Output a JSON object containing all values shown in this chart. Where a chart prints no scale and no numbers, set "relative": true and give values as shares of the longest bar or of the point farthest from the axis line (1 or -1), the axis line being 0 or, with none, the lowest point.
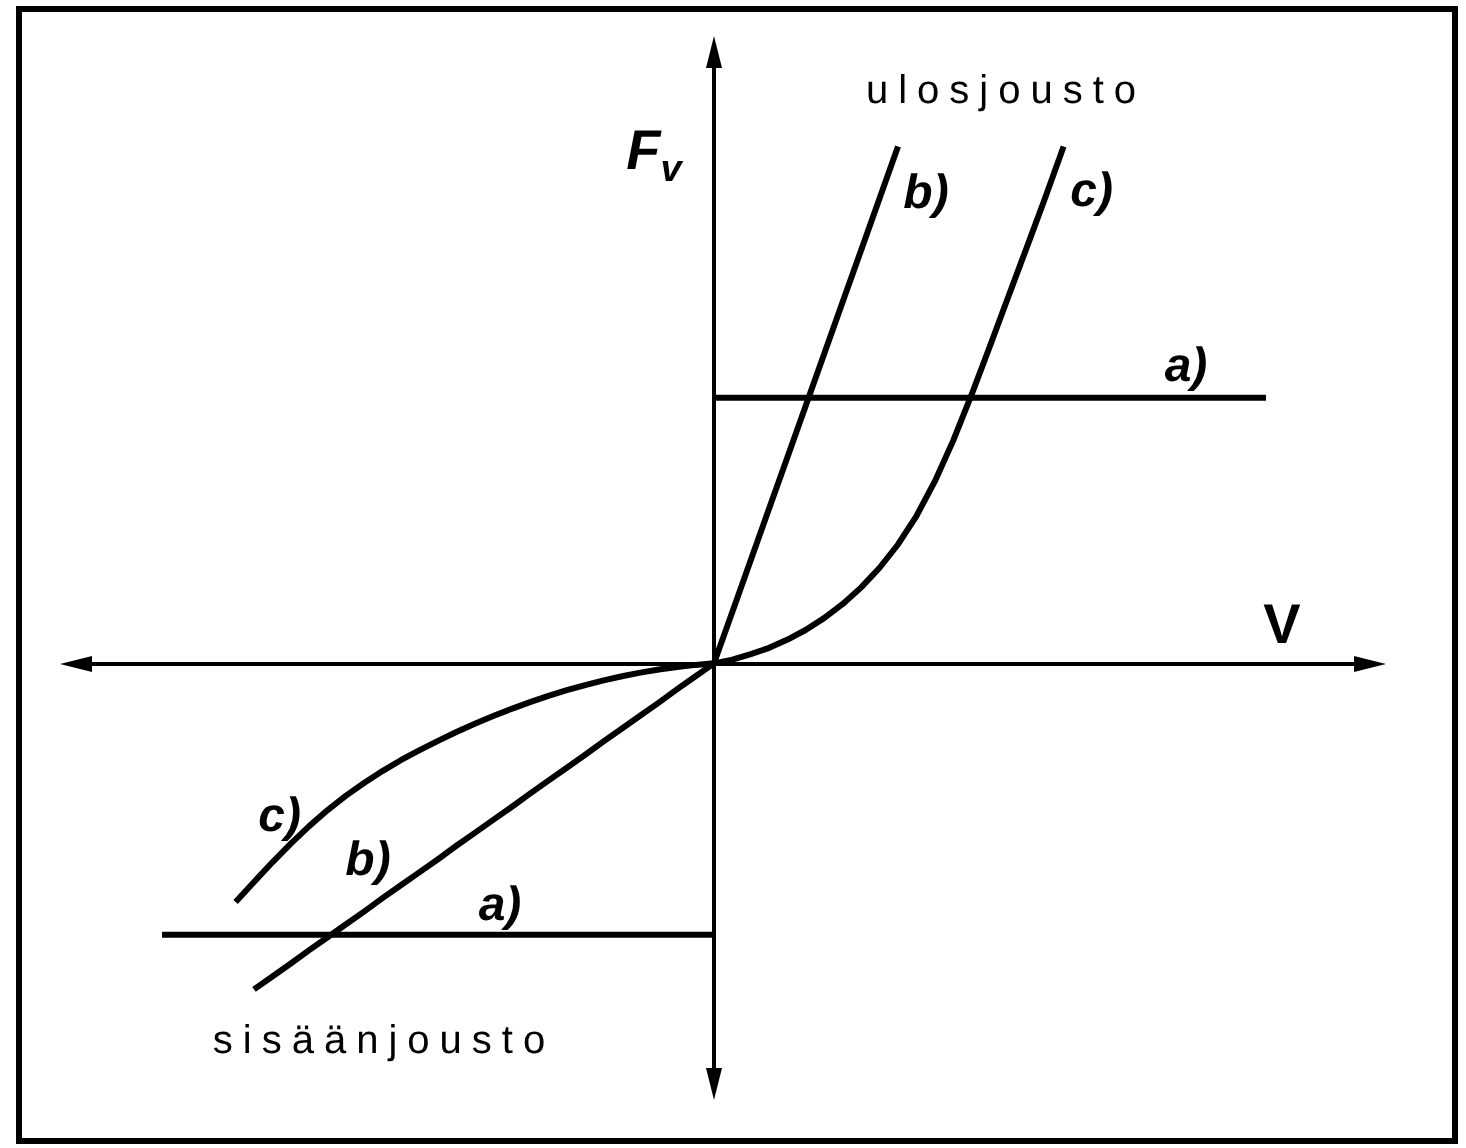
{
  "chart_data": {
    "type": "line",
    "relative": true,
    "xlabel": "V",
    "ylabel": "F$_{v}$",
    "marker": "none",
    "line_style": "solid",
    "categories": [
      null,
      null,
      null,
      null,
      null,
      null,
      null,
      null,
      null,
      null,
      null,
      null,
      null,
      null,
      null,
      null,
      null,
      null,
      null,
      null,
      null,
      null,
      null,
      null,
      null,
      null,
      null,
      null,
      null,
      null,
      null,
      null,
      null,
      null,
      null,
      null,
      null,
      null,
      null,
      null,
      null,
      null,
      null,
      null,
      null,
      null,
      null,
      null,
      null,
      null,
      null,
      null,
      null,
      null,
      null,
      null,
      null,
      null,
      null,
      null,
      null
    ],
    "series": [
      {
        "name": "a)",
        "color": "#000000",
        "values": [
          -0.525,
          -0.525,
          -0.525,
          -0.525,
          -0.525,
          -0.525,
          -0.525,
          -0.525,
          -0.525,
          -0.525,
          -0.525,
          -0.525,
          -0.525,
          -0.525,
          -0.525,
          -0.525,
          -0.525,
          -0.525,
          -0.525,
          -0.525,
          -0.525,
          -0.525,
          -0.525,
          -0.525,
          -0.525,
          -0.525,
          -0.525,
          -0.525,
          -0.525,
          -0.525,
          -0.525,
          null,
          null,
          null,
          null,
          null,
          null,
          null,
          null,
          null,
          null,
          null,
          null,
          null,
          null,
          null,
          null,
          null,
          null,
          null,
          null,
          null,
          null,
          null,
          null,
          null,
          null,
          null,
          null,
          null,
          null
        ]
      },
      {
        "name": "a)",
        "color": "#000000",
        "values": [
          null,
          null,
          null,
          null,
          null,
          null,
          null,
          null,
          null,
          null,
          null,
          null,
          null,
          null,
          null,
          null,
          null,
          null,
          null,
          null,
          null,
          null,
          null,
          null,
          null,
          null,
          null,
          null,
          null,
          null,
          0.514,
          0.514,
          0.514,
          0.514,
          0.514,
          0.514,
          0.514,
          0.514,
          0.514,
          0.514,
          0.514,
          0.514,
          0.514,
          0.514,
          0.514,
          0.514,
          0.514,
          0.514,
          0.514,
          0.514,
          0.514,
          0.514,
          0.514,
          0.514,
          0.514,
          0.514,
          0.514,
          0.514,
          0.514,
          0.514,
          0.514
        ]
      },
      {
        "name": "b)",
        "color": "#000000",
        "values": [
          null,
          null,
          null,
          null,
          null,
          -0.631,
          -0.606,
          -0.581,
          -0.555,
          -0.53,
          -0.505,
          -0.48,
          -0.454,
          -0.429,
          -0.404,
          -0.379,
          -0.353,
          -0.328,
          -0.303,
          -0.278,
          -0.252,
          -0.227,
          -0.202,
          -0.177,
          -0.151,
          -0.126,
          -0.101,
          -0.076,
          -0.05,
          -0.025,
          0,
          0.1,
          0.2,
          0.3,
          0.4,
          0.5,
          0.6,
          0.7,
          0.8,
          0.9,
          1,
          null,
          null,
          null,
          null,
          null,
          null,
          null,
          null,
          null,
          null,
          null,
          null,
          null,
          null,
          null,
          null,
          null,
          null,
          null,
          null
        ]
      },
      {
        "name": "c)",
        "color": "#000000",
        "values": [
          null,
          null,
          null,
          null,
          -0.462,
          -0.423,
          -0.385,
          -0.349,
          -0.315,
          -0.284,
          -0.256,
          -0.231,
          -0.208,
          -0.187,
          -0.168,
          -0.15,
          -0.133,
          -0.117,
          -0.102,
          -0.088,
          -0.075,
          -0.063,
          -0.052,
          -0.042,
          -0.033,
          -0.025,
          -0.018,
          -0.012,
          -0.007,
          -0.003,
          0,
          0.007,
          0.018,
          0.03,
          0.046,
          0.065,
          0.088,
          0.115,
          0.147,
          0.185,
          0.23,
          0.285,
          0.352,
          0.431,
          0.52,
          0.614,
          0.71,
          0.805,
          0.901,
          1,
          null,
          null,
          null,
          null,
          null,
          null,
          null,
          null,
          null,
          null,
          null
        ]
      }
    ],
    "annotations": [
      "ulosjousto",
      "sisäänjousto"
    ]
  }
}
